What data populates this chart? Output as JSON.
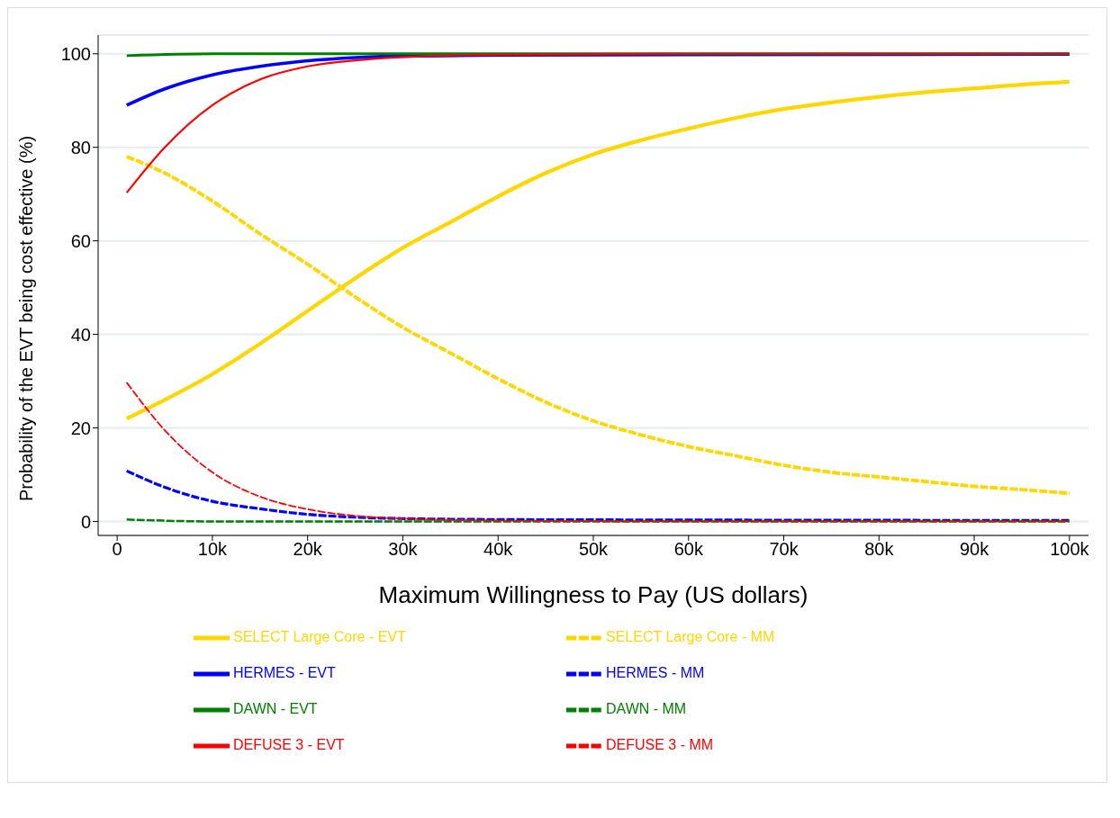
{
  "chart_data": {
    "type": "line",
    "xlabel": "Maximum Willingness to Pay (US dollars)",
    "ylabel": "Probability of the EVT being cost effective (%)",
    "xlim": [
      -2000,
      102000
    ],
    "xticks": [
      0,
      {
        "value": 10000,
        "label": "10k"
      },
      {
        "value": 20000,
        "label": "20k"
      },
      {
        "value": 30000,
        "label": "30k"
      },
      {
        "value": 40000,
        "label": "40k"
      },
      {
        "value": 50000,
        "label": "50k"
      },
      {
        "value": 60000,
        "label": "60k"
      },
      {
        "value": 70000,
        "label": "70k"
      },
      {
        "value": 80000,
        "label": "80k"
      },
      {
        "value": 90000,
        "label": "90k"
      },
      {
        "value": 100000,
        "label": "100k"
      }
    ],
    "ylim": [
      -3,
      104
    ],
    "yticks": [
      0,
      20,
      40,
      60,
      80,
      100
    ],
    "grid": "y",
    "legend": "bottom",
    "marker": "none",
    "series": [
      {
        "name": "SELECT Large Core - EVT",
        "color": "#ffd700",
        "line_style": "solid",
        "x": [
          1000,
          5000,
          10000,
          15000,
          20000,
          25000,
          30000,
          35000,
          40000,
          45000,
          50000,
          55000,
          60000,
          65000,
          70000,
          75000,
          80000,
          85000,
          90000,
          95000,
          100000
        ],
        "values": [
          22,
          26,
          31.5,
          38,
          45,
          52,
          58.5,
          64,
          69.5,
          74.5,
          78.5,
          81.5,
          84,
          86.3,
          88.2,
          89.6,
          90.8,
          91.8,
          92.6,
          93.4,
          94
        ]
      },
      {
        "name": "SELECT Large Core - MM",
        "color": "#ffd700",
        "line_style": "dashed",
        "x": [
          1000,
          5000,
          10000,
          15000,
          20000,
          25000,
          30000,
          35000,
          40000,
          45000,
          50000,
          55000,
          60000,
          65000,
          70000,
          75000,
          80000,
          85000,
          90000,
          95000,
          100000
        ],
        "values": [
          78,
          74.5,
          68.5,
          61.5,
          55,
          48,
          41.5,
          36,
          30.5,
          25.5,
          21.5,
          18.5,
          16,
          14,
          12,
          10.5,
          9.5,
          8.5,
          7.5,
          6.8,
          6
        ]
      },
      {
        "name": "HERMES - EVT",
        "color": "#0000ff",
        "line_style": "solid",
        "x": [
          1000,
          5000,
          10000,
          15000,
          20000,
          25000,
          30000,
          40000,
          60000,
          100000
        ],
        "values": [
          89,
          92.5,
          95.5,
          97.3,
          98.5,
          99.2,
          99.5,
          99.7,
          99.8,
          99.9
        ]
      },
      {
        "name": "HERMES - MM",
        "color": "#0000ff",
        "line_style": "dashed",
        "x": [
          1000,
          5000,
          10000,
          15000,
          20000,
          25000,
          30000,
          40000,
          60000,
          100000
        ],
        "values": [
          10.8,
          7.3,
          4.3,
          2.7,
          1.5,
          0.9,
          0.6,
          0.4,
          0.3,
          0.2
        ]
      },
      {
        "name": "DAWN - EVT",
        "color": "#008000",
        "line_style": "solid",
        "x": [
          1000,
          10000,
          100000
        ],
        "values": [
          99.6,
          100,
          100
        ]
      },
      {
        "name": "DAWN - MM",
        "color": "#008000",
        "line_style": "dashed",
        "x": [
          1000,
          10000,
          100000
        ],
        "values": [
          0.4,
          0,
          0
        ]
      },
      {
        "name": "DEFUSE 3 - EVT",
        "color": "#ff0000",
        "line_style": "solid",
        "x": [
          1000,
          5000,
          10000,
          15000,
          20000,
          25000,
          30000,
          40000,
          60000,
          100000
        ],
        "values": [
          70.3,
          80,
          89,
          94.5,
          97.3,
          98.6,
          99.3,
          99.8,
          100,
          100
        ]
      },
      {
        "name": "DEFUSE 3 - MM",
        "color": "#ff0000",
        "line_style": "dashed",
        "x": [
          1000,
          5000,
          10000,
          15000,
          20000,
          25000,
          30000,
          40000,
          60000,
          100000
        ],
        "values": [
          29.7,
          19.5,
          10.5,
          5.3,
          2.6,
          1.2,
          0.6,
          0.2,
          0,
          0
        ]
      }
    ]
  }
}
